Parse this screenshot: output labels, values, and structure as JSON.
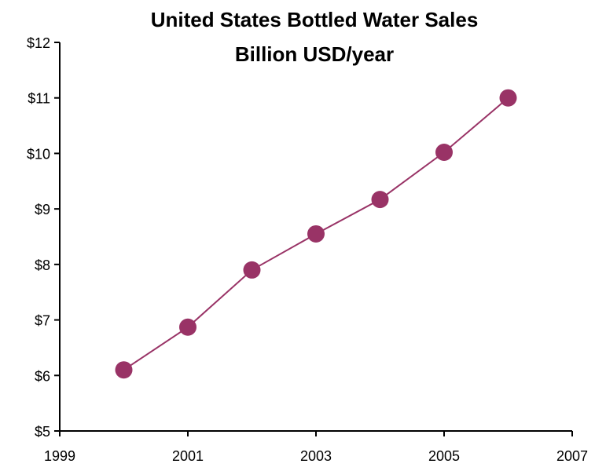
{
  "chart_data": {
    "type": "line",
    "title_lines": [
      "United States Bottled Water Sales",
      "Billion USD/year"
    ],
    "xlabel": "",
    "ylabel": "",
    "xlim": [
      1999,
      2007
    ],
    "ylim": [
      5,
      12
    ],
    "x_ticks": [
      1999,
      2001,
      2003,
      2005,
      2007
    ],
    "x_tick_labels": [
      "1999",
      "2001",
      "2003",
      "2005",
      "2007"
    ],
    "y_ticks": [
      5,
      6,
      7,
      8,
      9,
      10,
      11,
      12
    ],
    "y_tick_labels": [
      "$5",
      "$6",
      "$7",
      "$8",
      "$9",
      "$10",
      "$11",
      "$12"
    ],
    "grid": false,
    "legend": "none",
    "series": [
      {
        "color": "#993366",
        "marker": "circle",
        "x": [
          2000,
          2001,
          2002,
          2003,
          2004,
          2005,
          2006
        ],
        "y": [
          6.1,
          6.87,
          7.9,
          8.55,
          9.17,
          10.02,
          11.0
        ]
      }
    ]
  }
}
